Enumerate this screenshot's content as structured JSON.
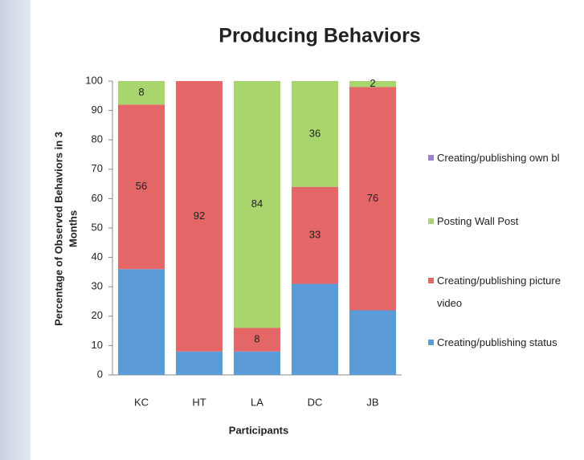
{
  "chart_data": {
    "type": "stacked_bar",
    "title": "Producing Behaviors",
    "ylabel": [
      "Percentage of Observed Behaviors in 3",
      "Months"
    ],
    "xlabel": "Participants",
    "categories": [
      "KC",
      "HT",
      "LA",
      "DC",
      "JB"
    ],
    "ylim": [
      0,
      100
    ],
    "yticks": [
      0,
      10,
      20,
      30,
      40,
      50,
      60,
      70,
      80,
      90,
      100
    ],
    "legend": "right",
    "series": [
      {
        "name": "Creating/publishing status",
        "color": "#5b9bd8",
        "values": [
          36,
          8,
          8,
          31,
          22
        ],
        "data_labels": false
      },
      {
        "name": "Creating/publishing picture video",
        "color": "#e46666",
        "values": [
          56,
          92,
          8,
          33,
          76
        ],
        "data_labels": true
      },
      {
        "name": "Posting Wall Post",
        "color": "#a8d56e",
        "values": [
          8,
          0,
          84,
          36,
          2
        ],
        "data_labels": true
      },
      {
        "name": "Creating/publishing own bl",
        "color": "#9b7fd4",
        "values": [
          0,
          0,
          0,
          0,
          0
        ],
        "data_labels": false
      }
    ]
  }
}
